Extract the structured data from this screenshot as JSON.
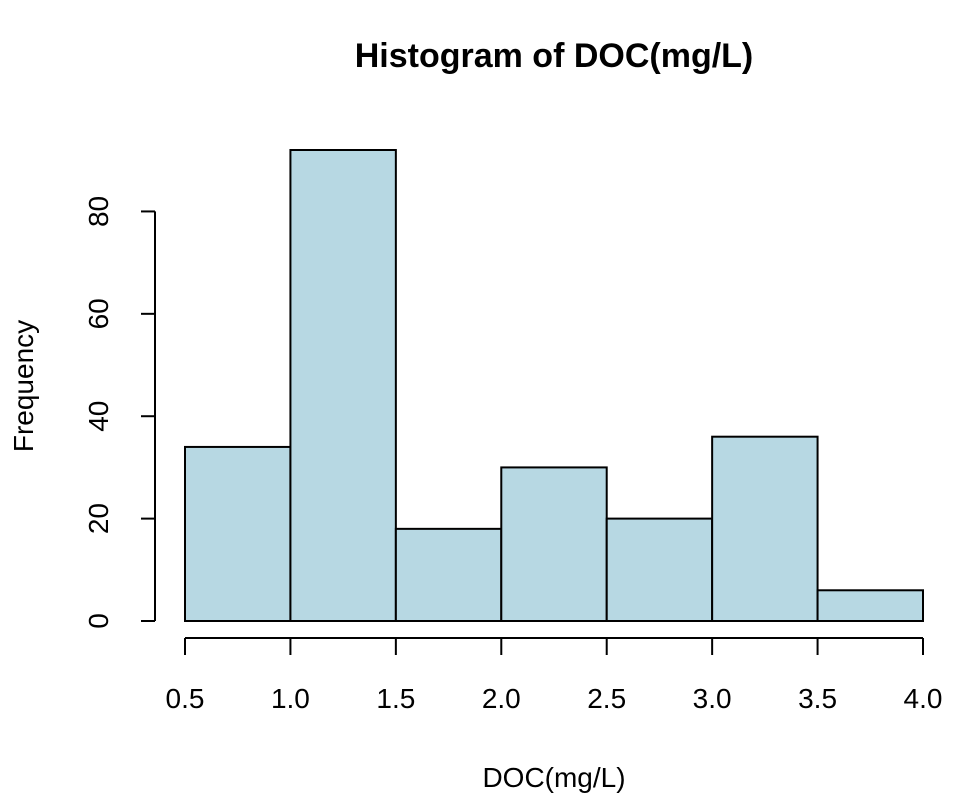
{
  "chart_data": {
    "type": "bar",
    "subtype": "histogram",
    "title": "Histogram of DOC(mg/L)",
    "xlabel": "DOC(mg/L)",
    "ylabel": "Frequency",
    "bins": [
      {
        "start": 0.5,
        "end": 1.0,
        "count": 34
      },
      {
        "start": 1.0,
        "end": 1.5,
        "count": 92
      },
      {
        "start": 1.5,
        "end": 2.0,
        "count": 18
      },
      {
        "start": 2.0,
        "end": 2.5,
        "count": 30
      },
      {
        "start": 2.5,
        "end": 3.0,
        "count": 20
      },
      {
        "start": 3.0,
        "end": 3.5,
        "count": 36
      },
      {
        "start": 3.5,
        "end": 4.0,
        "count": 6
      }
    ],
    "xticks": [
      "0.5",
      "1.0",
      "1.5",
      "2.0",
      "2.5",
      "3.0",
      "3.5",
      "4.0"
    ],
    "xtick_values": [
      0.5,
      1.0,
      1.5,
      2.0,
      2.5,
      3.0,
      3.5,
      4.0
    ],
    "yticks": [
      "0",
      "20",
      "40",
      "60",
      "80"
    ],
    "ytick_values": [
      0,
      20,
      40,
      60,
      80
    ],
    "xlim": [
      0.5,
      4.0
    ],
    "ylim": [
      0,
      92
    ],
    "grid": false,
    "legend": "none",
    "bar_color": "#b7d8e3",
    "edge_color": "#000000"
  }
}
